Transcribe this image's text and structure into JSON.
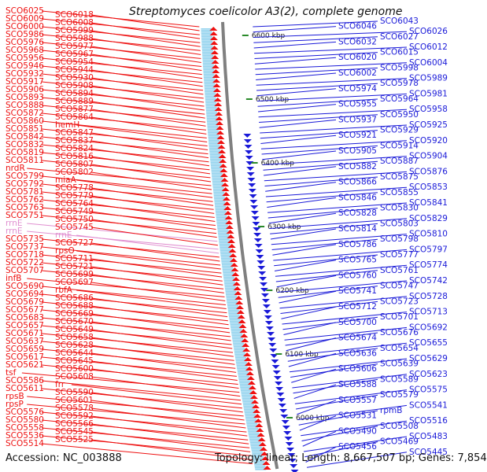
{
  "title": "Streptomyces coelicolor A3(2), complete genome",
  "footer": {
    "accession": "Accession: NC_003888",
    "summary": "Topology: linear; Length: 8,667,507 bp; Genes: 7,854"
  },
  "colors": {
    "forward_strand": "#ee1111",
    "reverse_strand": "#1a1ad8",
    "rna_label": "#e08fd0",
    "backbone": "#808080",
    "kbp_tick": "#2a8a2a"
  },
  "kbp_markers": [
    "6600 kbp",
    "6500 kbp",
    "6400 kbp",
    "6300 kbp",
    "6200 kbp",
    "6100 kbp",
    "6000 kbp"
  ],
  "left_labels": [
    "SCO6025",
    "SCO6018",
    "SCO6009",
    "SCO6008",
    "SCO6000",
    "SCO5999",
    "SCO5986",
    "SCO5988",
    "SCO5976",
    "SCO5977",
    "SCO5968",
    "SCO5967",
    "SCO5956",
    "SCO5954",
    "SCO5946",
    "SCO5944",
    "SCO5932",
    "SCO5930",
    "SCO5917",
    "SCO5908",
    "SCO5906",
    "SCO5894",
    "SCO5893",
    "SCO5889",
    "SCO5888",
    "SCO5877",
    "SCO5872",
    "SCO5864",
    "SCO5860",
    "hemH",
    "SCO5851",
    "SCO5847",
    "SCO5842",
    "SCO5837",
    "SCO5832",
    "SCO5824",
    "SCO5819",
    "SCO5816",
    "SCO5811",
    "SCO5807",
    "nrdR",
    "SCO5802",
    "SCO5799",
    "miaA",
    "SCO5792",
    "SCO5778",
    "SCO5781",
    "SCO5779",
    "SCO5762",
    "SCO5764",
    "SCO5763",
    "SCO5749",
    "SCO5751",
    "SCO5750",
    "rrnE",
    "SCO5745",
    "rrnE",
    "rrnE",
    "SCO5735",
    "SCO5727",
    "SCO5737",
    "rpsO",
    "SCO5718",
    "SCO5711",
    "SCO5722",
    "SCO5721",
    "SCO5707",
    "SCO5699",
    "infB",
    "SCO5697",
    "SCO5690",
    "rbfA",
    "SCO5694",
    "SCO5686",
    "SCO5679",
    "SCO5688",
    "SCO5677",
    "SCO5669",
    "SCO5683",
    "SCO5670",
    "SCO5657",
    "SCO5649",
    "SCO5671",
    "SCO5658",
    "SCO5637",
    "SCO5628",
    "SCO5659",
    "SCO5644",
    "SCO5617",
    "SCO5645",
    "SCO5621",
    "SCO5600",
    "tsf",
    "SCO5608",
    "SCO5586",
    "frr",
    "SCO5611",
    "SCO5590",
    "rpsB",
    "SCO5601",
    "rpsP",
    "SCO5578",
    "SCO5576",
    "SCO5592",
    "SCO5580",
    "SCO5566",
    "SCO5558",
    "SCO5545",
    "SCO5536",
    "SCO5525",
    "SCO5514"
  ],
  "right_labels": [
    "SCO6043",
    "SCO6046",
    "SCO6026",
    "SCO6027",
    "SCO6032",
    "SCO6012",
    "SCO6015",
    "SCO6020",
    "SCO6004",
    "SCO5998",
    "SCO6002",
    "SCO5989",
    "SCO5978",
    "SCO5974",
    "SCO5981",
    "SCO5964",
    "SCO5955",
    "SCO5958",
    "SCO5950",
    "SCO5937",
    "SCO5925",
    "SCO5929",
    "SCO5921",
    "SCO5920",
    "SCO5914",
    "SCO5905",
    "SCO5904",
    "SCO5887",
    "SCO5882",
    "SCO5876",
    "SCO5875",
    "SCO5866",
    "SCO5853",
    "SCO5855",
    "SCO5846",
    "SCO5841",
    "SCO5830",
    "SCO5828",
    "SCO5829",
    "SCO5803",
    "SCO5814",
    "SCO5810",
    "SCO5798",
    "SCO5786",
    "SCO5797",
    "SCO5777",
    "SCO5765",
    "SCO5774",
    "SCO5761",
    "SCO5760",
    "SCO5742",
    "SCO5747",
    "SCO5741",
    "SCO5728",
    "SCO5723",
    "SCO5712",
    "SCO5713",
    "SCO5701",
    "SCO5700",
    "SCO5692",
    "SCO5676",
    "SCO5674",
    "SCO5655",
    "SCO5654",
    "SCO5636",
    "SCO5629",
    "SCO5639",
    "SCO5606",
    "SCO5623",
    "SCO5589",
    "SCO5588",
    "SCO5575",
    "SCO5579",
    "SCO5557",
    "SCO5541",
    "rpmB",
    "SCO5531",
    "SCO5516",
    "SCO5508",
    "SCO5490",
    "SCO5483",
    "SCO5469",
    "SCO5456",
    "SCO5445"
  ]
}
